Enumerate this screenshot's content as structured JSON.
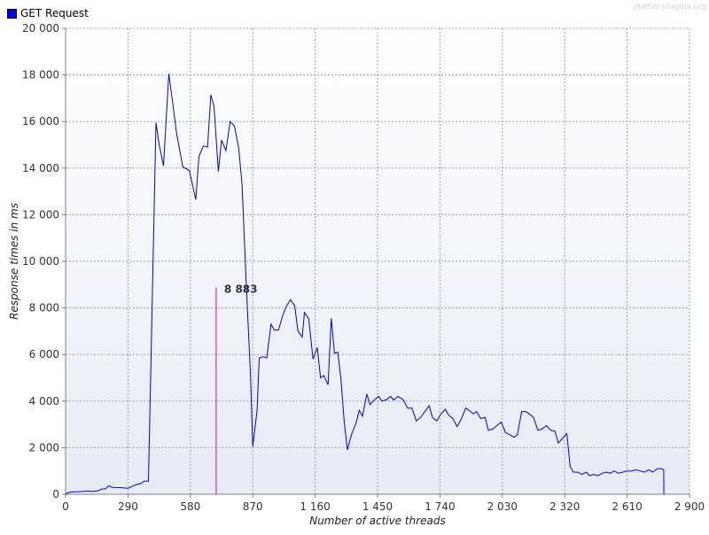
{
  "watermark": "jmeter-plugins.org",
  "chart_data": {
    "type": "line",
    "xlabel": "Number of active threads",
    "ylabel": "Response times in ms",
    "xlim": [
      0,
      2900
    ],
    "ylim": [
      0,
      20000
    ],
    "x_ticks": [
      0,
      290,
      580,
      870,
      1160,
      1450,
      1740,
      2030,
      2320,
      2610,
      2900
    ],
    "x_tick_labels": [
      "0",
      "290",
      "580",
      "870",
      "1 160",
      "1 450",
      "1 740",
      "2 030",
      "2 320",
      "2 610",
      "2 900"
    ],
    "y_ticks": [
      0,
      2000,
      4000,
      6000,
      8000,
      10000,
      12000,
      14000,
      16000,
      18000,
      20000
    ],
    "y_tick_labels": [
      "0",
      "2 000",
      "4 000",
      "6 000",
      "8 000",
      "10 000",
      "12 000",
      "14 000",
      "16 000",
      "18 000",
      "20 000"
    ],
    "grid": true,
    "legend": "top-left",
    "colors": {
      "series": "#0000e0",
      "marker": "#cc00cc",
      "plot_bg_top": "#ffffff",
      "plot_bg_bottom": "#e6ebf5",
      "grid": "#a0a0a0"
    },
    "series": [
      {
        "name": "GET Request",
        "points": [
          [
            0,
            0
          ],
          [
            10,
            60
          ],
          [
            25,
            90
          ],
          [
            45,
            110
          ],
          [
            65,
            110
          ],
          [
            85,
            120
          ],
          [
            100,
            140
          ],
          [
            115,
            120
          ],
          [
            130,
            130
          ],
          [
            150,
            150
          ],
          [
            170,
            230
          ],
          [
            185,
            230
          ],
          [
            200,
            360
          ],
          [
            215,
            300
          ],
          [
            230,
            290
          ],
          [
            260,
            280
          ],
          [
            290,
            260
          ],
          [
            310,
            340
          ],
          [
            330,
            420
          ],
          [
            350,
            460
          ],
          [
            365,
            560
          ],
          [
            385,
            560
          ],
          [
            420,
            15950
          ],
          [
            435,
            15000
          ],
          [
            455,
            14100
          ],
          [
            480,
            18050
          ],
          [
            500,
            16650
          ],
          [
            515,
            15550
          ],
          [
            545,
            14050
          ],
          [
            575,
            13900
          ],
          [
            605,
            12650
          ],
          [
            620,
            14500
          ],
          [
            640,
            14950
          ],
          [
            660,
            14900
          ],
          [
            675,
            17150
          ],
          [
            690,
            16650
          ],
          [
            710,
            13850
          ],
          [
            725,
            15200
          ],
          [
            745,
            14750
          ],
          [
            765,
            16000
          ],
          [
            785,
            15800
          ],
          [
            805,
            14850
          ],
          [
            820,
            13300
          ],
          [
            840,
            9000
          ],
          [
            860,
            5000
          ],
          [
            870,
            2050
          ],
          [
            890,
            3600
          ],
          [
            900,
            5850
          ],
          [
            920,
            5900
          ],
          [
            935,
            5850
          ],
          [
            955,
            7300
          ],
          [
            970,
            7050
          ],
          [
            990,
            7050
          ],
          [
            1010,
            7700
          ],
          [
            1025,
            8050
          ],
          [
            1045,
            8350
          ],
          [
            1065,
            8100
          ],
          [
            1080,
            7000
          ],
          [
            1100,
            6750
          ],
          [
            1110,
            7800
          ],
          [
            1130,
            7550
          ],
          [
            1150,
            5800
          ],
          [
            1170,
            6300
          ],
          [
            1185,
            5000
          ],
          [
            1200,
            5100
          ],
          [
            1220,
            4700
          ],
          [
            1235,
            7550
          ],
          [
            1250,
            6050
          ],
          [
            1265,
            6100
          ],
          [
            1280,
            4950
          ],
          [
            1295,
            3100
          ],
          [
            1310,
            1900
          ],
          [
            1330,
            2600
          ],
          [
            1350,
            3050
          ],
          [
            1365,
            3600
          ],
          [
            1380,
            3350
          ],
          [
            1400,
            4300
          ],
          [
            1415,
            3850
          ],
          [
            1435,
            4050
          ],
          [
            1455,
            4200
          ],
          [
            1470,
            4000
          ],
          [
            1490,
            4050
          ],
          [
            1510,
            4200
          ],
          [
            1525,
            4050
          ],
          [
            1545,
            4200
          ],
          [
            1570,
            4050
          ],
          [
            1590,
            3700
          ],
          [
            1610,
            3700
          ],
          [
            1630,
            3150
          ],
          [
            1650,
            3300
          ],
          [
            1670,
            3550
          ],
          [
            1690,
            3800
          ],
          [
            1705,
            3300
          ],
          [
            1725,
            3150
          ],
          [
            1745,
            3450
          ],
          [
            1765,
            3650
          ],
          [
            1780,
            3400
          ],
          [
            1800,
            3250
          ],
          [
            1820,
            2900
          ],
          [
            1840,
            3250
          ],
          [
            1860,
            3700
          ],
          [
            1875,
            3600
          ],
          [
            1895,
            3450
          ],
          [
            1910,
            3550
          ],
          [
            1930,
            3250
          ],
          [
            1950,
            3300
          ],
          [
            1965,
            2750
          ],
          [
            1985,
            2800
          ],
          [
            2005,
            2950
          ],
          [
            2025,
            3100
          ],
          [
            2045,
            2650
          ],
          [
            2065,
            2550
          ],
          [
            2085,
            2450
          ],
          [
            2100,
            2550
          ],
          [
            2120,
            3550
          ],
          [
            2140,
            3550
          ],
          [
            2155,
            3450
          ],
          [
            2175,
            3300
          ],
          [
            2195,
            2750
          ],
          [
            2215,
            2800
          ],
          [
            2235,
            2950
          ],
          [
            2255,
            2750
          ],
          [
            2275,
            2700
          ],
          [
            2290,
            2200
          ],
          [
            2310,
            2400
          ],
          [
            2330,
            2600
          ],
          [
            2345,
            1200
          ],
          [
            2360,
            950
          ],
          [
            2380,
            950
          ],
          [
            2400,
            850
          ],
          [
            2420,
            950
          ],
          [
            2435,
            800
          ],
          [
            2455,
            850
          ],
          [
            2475,
            800
          ],
          [
            2495,
            900
          ],
          [
            2515,
            950
          ],
          [
            2530,
            900
          ],
          [
            2550,
            1000
          ],
          [
            2570,
            900
          ],
          [
            2590,
            950
          ],
          [
            2610,
            1000
          ],
          [
            2630,
            1000
          ],
          [
            2650,
            1050
          ],
          [
            2670,
            1000
          ],
          [
            2690,
            950
          ],
          [
            2710,
            1050
          ],
          [
            2730,
            950
          ],
          [
            2750,
            1100
          ],
          [
            2770,
            1100
          ],
          [
            2780,
            1050
          ],
          [
            2781,
            0
          ]
        ]
      }
    ],
    "annotations": [
      {
        "x": 700,
        "y": 8883,
        "label": "8 883"
      }
    ]
  }
}
